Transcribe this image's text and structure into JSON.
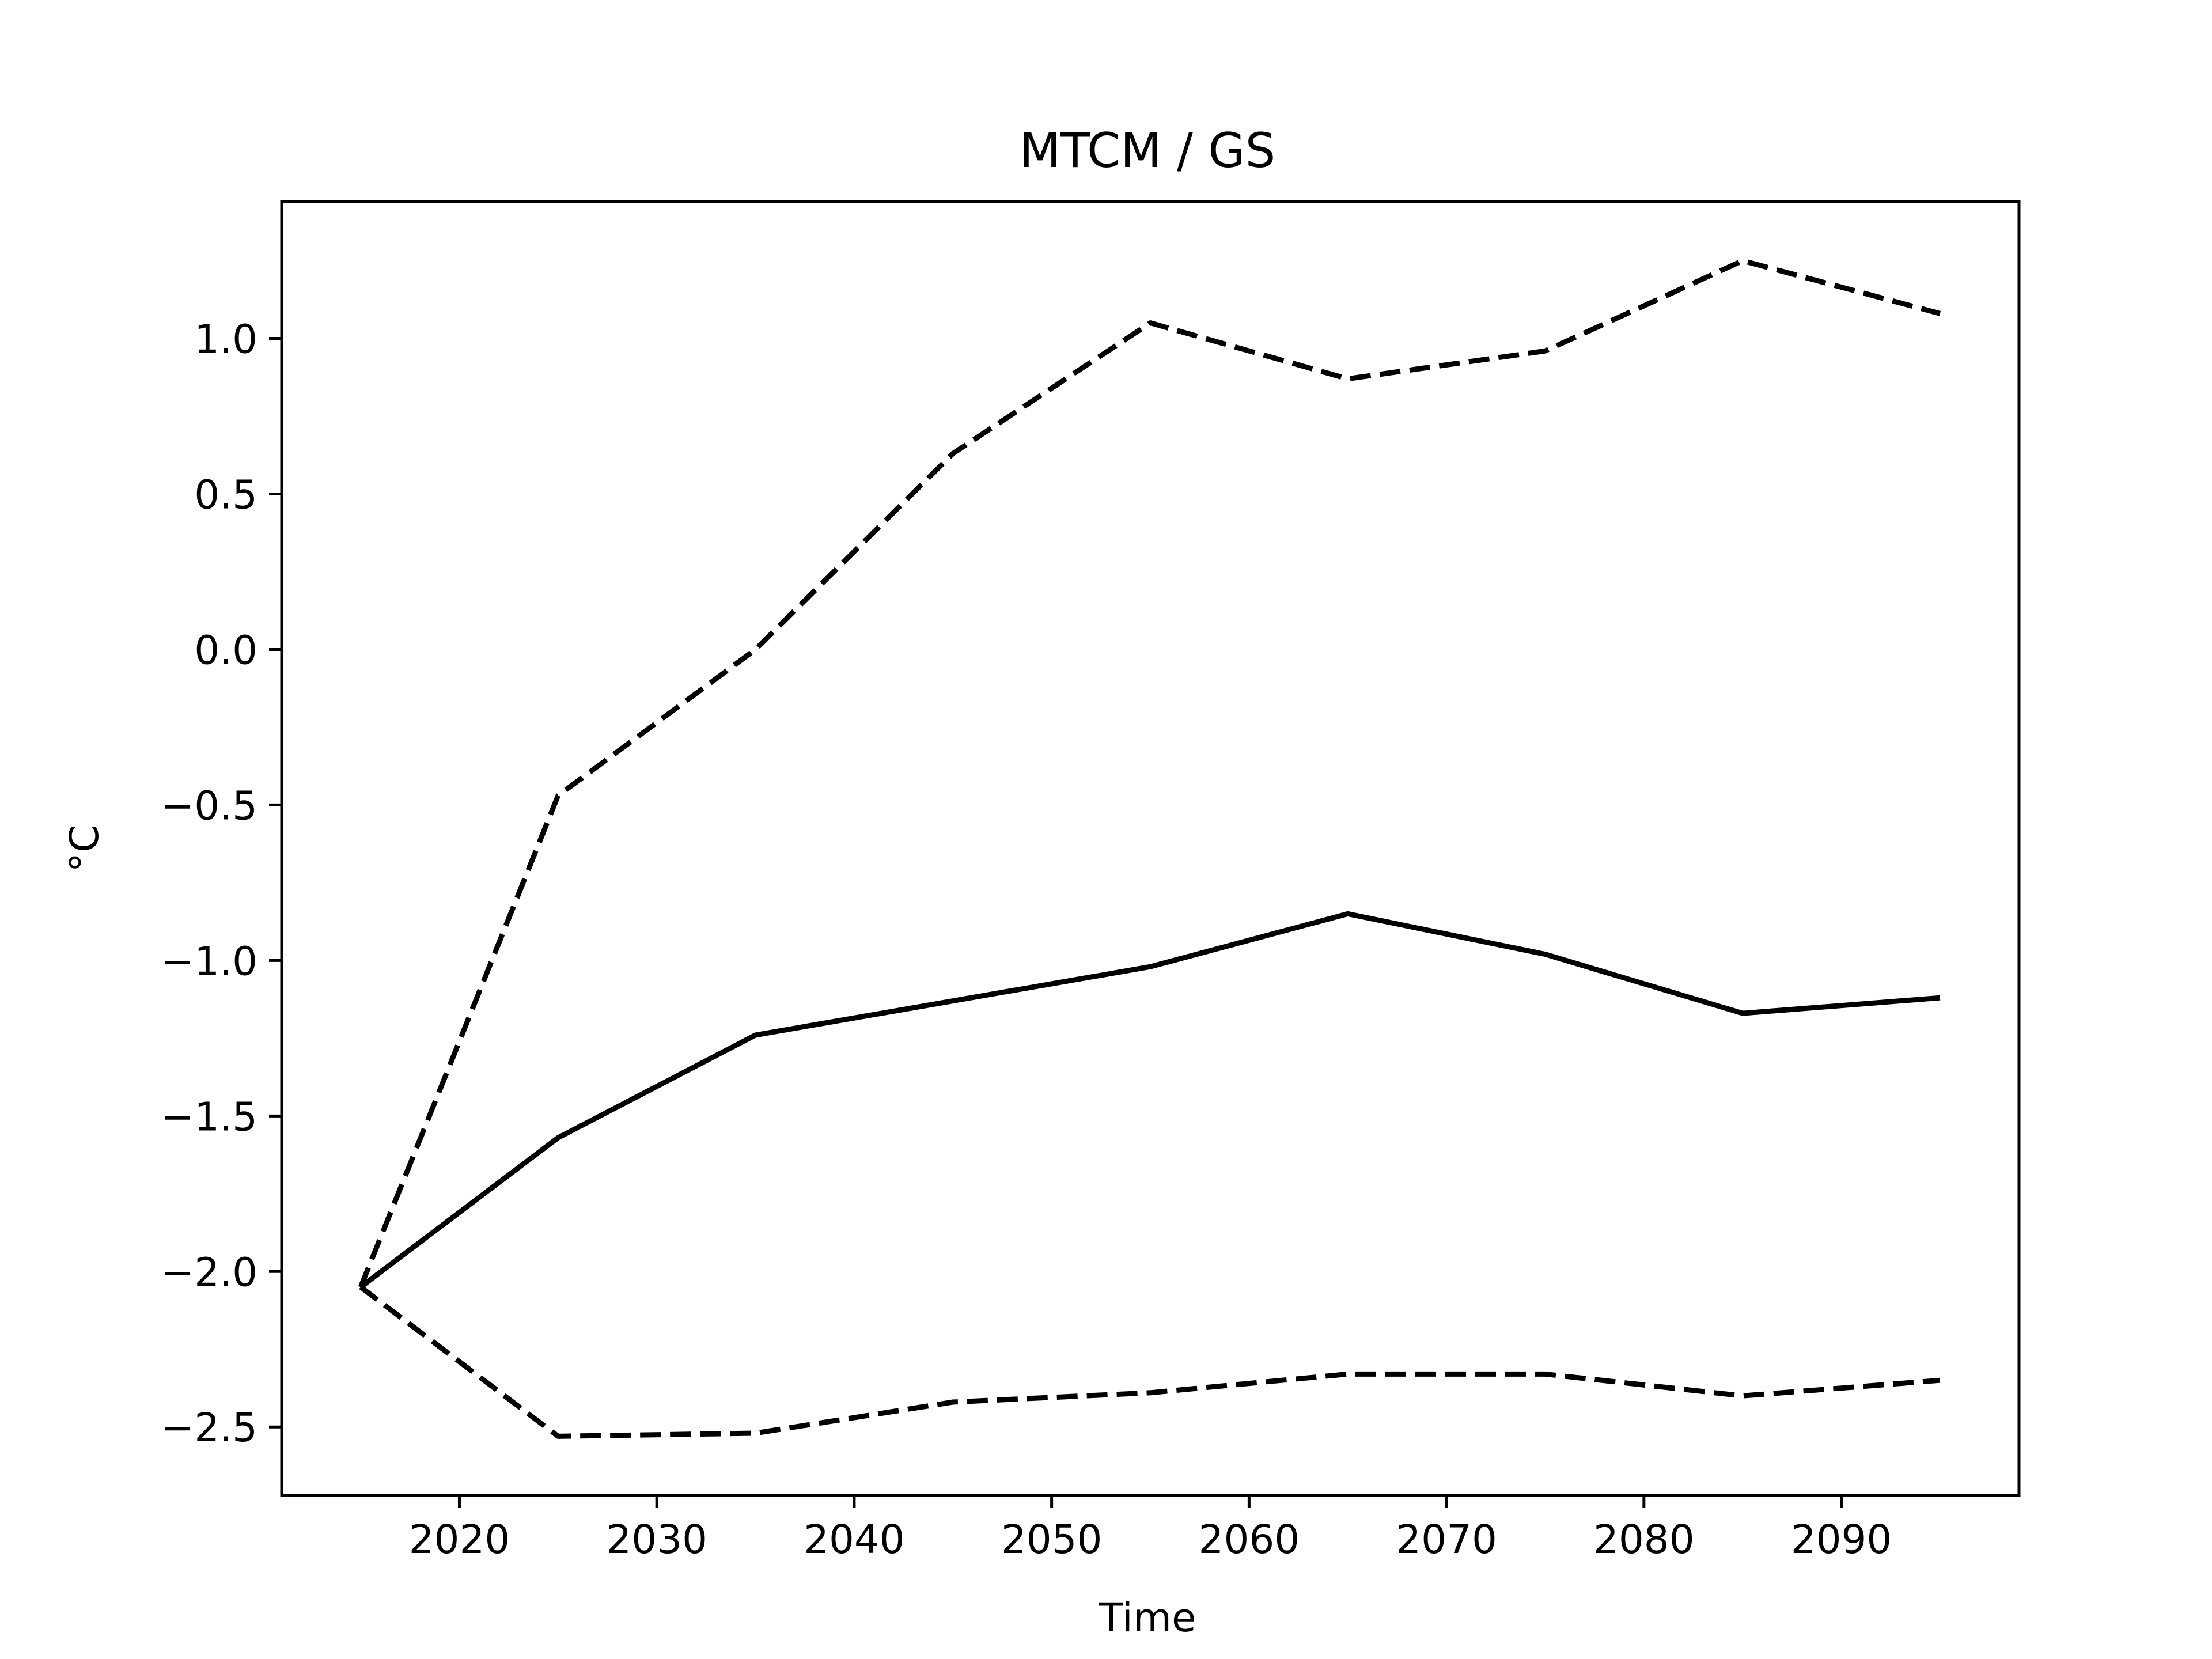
{
  "chart_data": {
    "type": "line",
    "title": "MTCM / GS",
    "xlabel": "Time",
    "ylabel": "°C",
    "x": [
      2015,
      2025,
      2035,
      2045,
      2055,
      2065,
      2075,
      2085,
      2095
    ],
    "series": [
      {
        "style": "solid",
        "color": "#000000",
        "values": [
          -2.05,
          -1.57,
          -1.24,
          -1.13,
          -1.02,
          -0.85,
          -0.98,
          -1.17,
          -1.12
        ]
      },
      {
        "style": "dashed",
        "color": "#000000",
        "values": [
          -2.05,
          -0.47,
          0.0,
          0.63,
          1.05,
          0.87,
          0.96,
          1.25,
          1.08
        ]
      },
      {
        "style": "dashed",
        "color": "#000000",
        "values": [
          -2.05,
          -2.53,
          -2.52,
          -2.42,
          -2.39,
          -2.33,
          -2.33,
          -2.4,
          -2.35
        ]
      }
    ],
    "xlim": [
      2011,
      2099
    ],
    "ylim": [
      -2.72,
      1.44
    ],
    "xticks": [
      2020,
      2030,
      2040,
      2050,
      2060,
      2070,
      2080,
      2090
    ],
    "xtick_labels": [
      "2020",
      "2030",
      "2040",
      "2050",
      "2060",
      "2070",
      "2080",
      "2090"
    ],
    "yticks": [
      1.0,
      0.5,
      0.0,
      -0.5,
      -1.0,
      -1.5,
      -2.0,
      -2.5
    ],
    "ytick_labels": [
      "1.0",
      "0.5",
      "0.0",
      "−0.5",
      "−1.0",
      "−1.5",
      "−2.0",
      "−2.5"
    ],
    "grid": false,
    "legend": "none"
  }
}
